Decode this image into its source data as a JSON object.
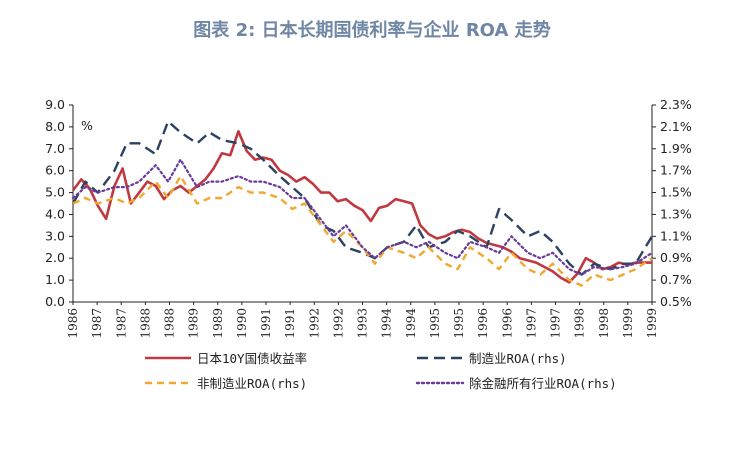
{
  "chart_data": {
    "type": "line",
    "title": "图表 2: 日本长期国债利率与企业 ROA 走势",
    "unit_label": "%",
    "left_axis": {
      "ylim": [
        0,
        9
      ],
      "ticks": [
        "0.0",
        "1.0",
        "2.0",
        "3.0",
        "4.0",
        "5.0",
        "6.0",
        "7.0",
        "8.0",
        "9.0"
      ]
    },
    "right_axis": {
      "ylim": [
        0.5,
        2.3
      ],
      "ticks": [
        "0.5%",
        "0.7%",
        "0.9%",
        "1.1%",
        "1.3%",
        "1.5%",
        "1.7%",
        "1.9%",
        "2.1%",
        "2.3%"
      ]
    },
    "x_range": [
      1986.0,
      2000.0
    ],
    "x_tick_labels": [
      "1986",
      "1987",
      "1987",
      "1988",
      "1988",
      "1989",
      "1989",
      "1990",
      "1991",
      "1991",
      "1992",
      "1992",
      "1993",
      "1994",
      "1994",
      "1995",
      "1995",
      "1996",
      "1996",
      "1997",
      "1997",
      "1998",
      "1998",
      "1999",
      "1999"
    ],
    "series": [
      {
        "name": "日本10Y国债收益率",
        "axis": "left",
        "color": "#c0393f",
        "dash": "solid",
        "x": [
          1986.0,
          1986.2,
          1986.4,
          1986.6,
          1986.8,
          1987.0,
          1987.2,
          1987.4,
          1987.6,
          1987.8,
          1988.0,
          1988.2,
          1988.4,
          1988.6,
          1988.8,
          1989.0,
          1989.2,
          1989.4,
          1989.6,
          1989.8,
          1990.0,
          1990.2,
          1990.4,
          1990.6,
          1990.8,
          1991.0,
          1991.2,
          1991.4,
          1991.6,
          1991.8,
          1992.0,
          1992.2,
          1992.4,
          1992.6,
          1992.8,
          1993.0,
          1993.2,
          1993.4,
          1993.6,
          1993.8,
          1994.0,
          1994.2,
          1994.4,
          1994.6,
          1994.8,
          1995.0,
          1995.2,
          1995.4,
          1995.6,
          1995.8,
          1996.0,
          1996.2,
          1996.4,
          1996.6,
          1996.8,
          1997.0,
          1997.2,
          1997.4,
          1997.6,
          1997.8,
          1998.0,
          1998.2,
          1998.4,
          1998.6,
          1998.8,
          1999.0,
          1999.2,
          1999.4,
          1999.6,
          1999.8,
          2000.0
        ],
        "values": [
          5.1,
          5.6,
          5.2,
          4.4,
          3.8,
          5.3,
          6.1,
          4.5,
          5.0,
          5.5,
          5.3,
          4.7,
          5.1,
          5.3,
          5.0,
          5.3,
          5.6,
          6.1,
          6.8,
          6.7,
          7.8,
          6.9,
          6.5,
          6.6,
          6.5,
          6.0,
          5.8,
          5.5,
          5.7,
          5.4,
          5.0,
          5.0,
          4.6,
          4.7,
          4.4,
          4.2,
          3.7,
          4.3,
          4.4,
          4.7,
          4.6,
          4.5,
          3.5,
          3.1,
          2.9,
          3.0,
          3.2,
          3.3,
          3.2,
          2.9,
          2.7,
          2.6,
          2.5,
          2.3,
          2.0,
          1.9,
          1.8,
          1.6,
          1.4,
          1.1,
          0.9,
          1.3,
          2.0,
          1.8,
          1.5,
          1.6,
          1.8,
          1.7,
          1.8,
          1.8,
          1.8
        ]
      },
      {
        "name": "制造业ROA(rhs)",
        "axis": "right",
        "color": "#2c4260",
        "dash": "long",
        "x": [
          1986.0,
          1986.3,
          1986.6,
          1987.0,
          1987.3,
          1987.6,
          1988.0,
          1988.3,
          1988.6,
          1989.0,
          1989.3,
          1989.6,
          1990.0,
          1990.3,
          1990.6,
          1991.0,
          1991.3,
          1991.6,
          1992.0,
          1992.3,
          1992.6,
          1993.0,
          1993.3,
          1993.6,
          1994.0,
          1994.3,
          1994.6,
          1995.0,
          1995.3,
          1995.6,
          1996.0,
          1996.3,
          1996.6,
          1997.0,
          1997.3,
          1997.6,
          1998.0,
          1998.3,
          1998.6,
          1999.0,
          1999.3,
          1999.6,
          2000.0
        ],
        "values": [
          1.4,
          1.6,
          1.5,
          1.7,
          1.95,
          1.95,
          1.85,
          2.15,
          2.05,
          1.95,
          2.05,
          1.98,
          1.95,
          1.9,
          1.8,
          1.65,
          1.55,
          1.45,
          1.2,
          1.15,
          1.0,
          0.95,
          0.9,
          1.0,
          1.05,
          1.2,
          1.0,
          1.05,
          1.15,
          1.1,
          1.0,
          1.35,
          1.25,
          1.1,
          1.15,
          1.05,
          0.85,
          0.75,
          0.85,
          0.8,
          0.85,
          0.85,
          1.1
        ]
      },
      {
        "name": "非制造业ROA(rhs)",
        "axis": "right",
        "color": "#f0a830",
        "dash": "medium",
        "x": [
          1986.0,
          1986.3,
          1986.6,
          1987.0,
          1987.3,
          1987.6,
          1988.0,
          1988.3,
          1988.6,
          1989.0,
          1989.3,
          1989.6,
          1990.0,
          1990.3,
          1990.6,
          1991.0,
          1991.3,
          1991.6,
          1992.0,
          1992.3,
          1992.6,
          1993.0,
          1993.3,
          1993.6,
          1994.0,
          1994.3,
          1994.6,
          1995.0,
          1995.3,
          1995.6,
          1996.0,
          1996.3,
          1996.6,
          1997.0,
          1997.3,
          1997.6,
          1998.0,
          1998.3,
          1998.6,
          1999.0,
          1999.3,
          1999.6,
          2000.0
        ],
        "values": [
          1.4,
          1.45,
          1.4,
          1.45,
          1.4,
          1.45,
          1.6,
          1.45,
          1.65,
          1.4,
          1.45,
          1.45,
          1.55,
          1.5,
          1.5,
          1.45,
          1.35,
          1.4,
          1.2,
          1.05,
          1.15,
          1.0,
          0.85,
          1.0,
          0.95,
          0.9,
          1.0,
          0.85,
          0.8,
          1.0,
          0.9,
          0.8,
          0.95,
          0.8,
          0.75,
          0.85,
          0.7,
          0.65,
          0.75,
          0.7,
          0.75,
          0.8,
          0.9
        ]
      },
      {
        "name": "除金融所有行业ROA(rhs)",
        "axis": "right",
        "color": "#6a3c9a",
        "dash": "dotted",
        "x": [
          1986.0,
          1986.3,
          1986.6,
          1987.0,
          1987.3,
          1987.6,
          1988.0,
          1988.3,
          1988.6,
          1989.0,
          1989.3,
          1989.6,
          1990.0,
          1990.3,
          1990.6,
          1991.0,
          1991.3,
          1991.6,
          1992.0,
          1992.3,
          1992.6,
          1993.0,
          1993.3,
          1993.6,
          1994.0,
          1994.3,
          1994.6,
          1995.0,
          1995.3,
          1995.6,
          1996.0,
          1996.3,
          1996.6,
          1997.0,
          1997.3,
          1997.6,
          1998.0,
          1998.3,
          1998.6,
          1999.0,
          1999.3,
          1999.6,
          2000.0
        ],
        "values": [
          1.45,
          1.55,
          1.5,
          1.55,
          1.55,
          1.6,
          1.75,
          1.6,
          1.8,
          1.55,
          1.6,
          1.6,
          1.65,
          1.6,
          1.6,
          1.55,
          1.45,
          1.45,
          1.25,
          1.1,
          1.2,
          1.0,
          0.9,
          1.0,
          1.05,
          1.0,
          1.05,
          0.95,
          0.9,
          1.05,
          1.0,
          0.95,
          1.1,
          0.95,
          0.9,
          0.95,
          0.8,
          0.75,
          0.82,
          0.8,
          0.82,
          0.85,
          0.95
        ]
      }
    ],
    "legend": {
      "placement": "bottom"
    }
  }
}
